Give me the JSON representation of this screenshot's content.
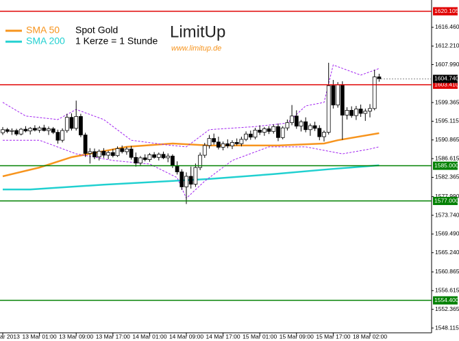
{
  "chart_data": {
    "type": "candlestick",
    "ylim": [
      1547.03,
      1622.67
    ],
    "yticks": [
      {
        "value": 1616.46,
        "label": "1616.460"
      },
      {
        "value": 1612.21,
        "label": "1612.210"
      },
      {
        "value": 1607.99,
        "label": "1607.990"
      },
      {
        "value": 1599.365,
        "label": "1599.365"
      },
      {
        "value": 1595.115,
        "label": "1595.115"
      },
      {
        "value": 1590.865,
        "label": "1590.865"
      },
      {
        "value": 1586.615,
        "label": "1586.615"
      },
      {
        "value": 1582.365,
        "label": "1582.365"
      },
      {
        "value": 1577.99,
        "label": "1577.990"
      },
      {
        "value": 1573.74,
        "label": "1573.740"
      },
      {
        "value": 1569.49,
        "label": "1569.490"
      },
      {
        "value": 1565.24,
        "label": "1565.240"
      },
      {
        "value": 1560.865,
        "label": "1560.865"
      },
      {
        "value": 1556.615,
        "label": "1556.615"
      },
      {
        "value": 1552.365,
        "label": "1552.365"
      },
      {
        "value": 1548.115,
        "label": "1548.115"
      }
    ],
    "levels": [
      {
        "value": 1620.105,
        "label": "1620.105",
        "color": "#e00000"
      },
      {
        "value": 1603.41,
        "label": "1603.410",
        "color": "#e00000"
      },
      {
        "value": 1585.0,
        "label": "1585.000",
        "color": "#008000"
      },
      {
        "value": 1577.0,
        "label": "1577.000",
        "color": "#008000"
      },
      {
        "value": 1554.4,
        "label": "1554.400",
        "color": "#008000"
      }
    ],
    "last_price": {
      "value": 1604.74,
      "label": "1604.740"
    },
    "annotations": [
      "Spot Gold",
      "1 Kerze = 1 Stunde"
    ],
    "logo": {
      "name": "LimitUp",
      "url": "www.limitup.de"
    },
    "up_color": "#ffffff",
    "down_color": "#000000",
    "categories": [
      "ar 2013",
      null,
      null,
      null,
      null,
      null,
      null,
      null,
      "13 Mar 01:00",
      null,
      null,
      null,
      null,
      null,
      null,
      null,
      "13 Mar 09:00",
      null,
      null,
      null,
      null,
      null,
      null,
      null,
      "13 Mar 17:00",
      null,
      null,
      null,
      null,
      null,
      null,
      null,
      "14 Mar 01:00",
      null,
      null,
      null,
      null,
      null,
      null,
      null,
      "14 Mar 09:00",
      null,
      null,
      null,
      null,
      null,
      null,
      null,
      "14 Mar 17:00",
      null,
      null,
      null,
      null,
      null,
      null,
      null,
      "15 Mar 01:00",
      null,
      null,
      null,
      null,
      null,
      null,
      null,
      "15 Mar 09:00",
      null,
      null,
      null,
      null,
      null,
      null,
      null,
      "15 Mar 17:00",
      null,
      null,
      null,
      null,
      null,
      null,
      null,
      "18 Mar 02:00",
      null,
      null
    ],
    "ohlc": [
      [
        1592.5,
        1593.8,
        1592.0,
        1593.2
      ],
      [
        1593.2,
        1593.6,
        1592.4,
        1592.8
      ],
      [
        1592.8,
        1593.5,
        1592.0,
        1593.0
      ],
      [
        1593.0,
        1593.4,
        1591.8,
        1592.2
      ],
      [
        1592.2,
        1593.6,
        1591.9,
        1593.3
      ],
      [
        1593.3,
        1594.0,
        1592.6,
        1592.9
      ],
      [
        1592.9,
        1593.8,
        1592.1,
        1593.5
      ],
      [
        1593.5,
        1594.2,
        1592.8,
        1593.1
      ],
      [
        1593.1,
        1594.0,
        1592.5,
        1593.6
      ],
      [
        1593.6,
        1594.3,
        1592.8,
        1593.0
      ],
      [
        1593.0,
        1593.9,
        1592.0,
        1593.4
      ],
      [
        1593.4,
        1593.8,
        1592.2,
        1592.6
      ],
      [
        1592.6,
        1593.2,
        1590.0,
        1590.8
      ],
      [
        1590.8,
        1593.5,
        1590.3,
        1593.0
      ],
      [
        1593.0,
        1596.8,
        1592.5,
        1596.0
      ],
      [
        1596.0,
        1596.9,
        1593.0,
        1593.5
      ],
      [
        1593.5,
        1599.8,
        1593.0,
        1596.2
      ],
      [
        1596.2,
        1596.8,
        1591.5,
        1592.0
      ],
      [
        1592.0,
        1592.5,
        1587.0,
        1587.8
      ],
      [
        1587.8,
        1589.0,
        1585.5,
        1588.2
      ],
      [
        1588.2,
        1588.9,
        1586.5,
        1587.0
      ],
      [
        1587.0,
        1588.7,
        1586.2,
        1588.3
      ],
      [
        1588.3,
        1589.0,
        1586.8,
        1587.4
      ],
      [
        1587.4,
        1588.4,
        1586.5,
        1588.0
      ],
      [
        1588.0,
        1588.8,
        1586.9,
        1587.3
      ],
      [
        1587.3,
        1589.4,
        1587.0,
        1588.9
      ],
      [
        1588.9,
        1589.6,
        1587.8,
        1588.2
      ],
      [
        1588.2,
        1589.3,
        1587.5,
        1588.8
      ],
      [
        1588.8,
        1589.5,
        1586.4,
        1586.9
      ],
      [
        1586.9,
        1588.0,
        1584.8,
        1585.6
      ],
      [
        1585.6,
        1587.2,
        1585.1,
        1586.8
      ],
      [
        1586.8,
        1587.6,
        1586.0,
        1586.4
      ],
      [
        1586.4,
        1587.9,
        1585.9,
        1587.5
      ],
      [
        1587.5,
        1588.1,
        1586.6,
        1586.9
      ],
      [
        1586.9,
        1588.0,
        1586.2,
        1587.6
      ],
      [
        1587.6,
        1588.2,
        1586.5,
        1586.8
      ],
      [
        1586.8,
        1587.8,
        1585.8,
        1587.2
      ],
      [
        1587.2,
        1587.6,
        1584.5,
        1585.0
      ],
      [
        1585.0,
        1586.0,
        1583.0,
        1583.6
      ],
      [
        1583.6,
        1584.2,
        1579.5,
        1580.2
      ],
      [
        1580.2,
        1583.5,
        1576.3,
        1582.6
      ],
      [
        1582.6,
        1584.8,
        1579.8,
        1580.8
      ],
      [
        1580.8,
        1585.5,
        1580.2,
        1584.6
      ],
      [
        1584.6,
        1588.0,
        1584.0,
        1587.4
      ],
      [
        1587.4,
        1590.2,
        1586.8,
        1589.6
      ],
      [
        1589.6,
        1592.0,
        1588.9,
        1591.2
      ],
      [
        1591.2,
        1592.3,
        1589.8,
        1590.4
      ],
      [
        1590.4,
        1591.6,
        1588.7,
        1589.2
      ],
      [
        1589.2,
        1590.5,
        1588.5,
        1590.0
      ],
      [
        1590.0,
        1591.0,
        1589.0,
        1589.5
      ],
      [
        1589.5,
        1590.8,
        1588.8,
        1590.3
      ],
      [
        1590.3,
        1591.2,
        1589.6,
        1590.0
      ],
      [
        1590.0,
        1591.6,
        1589.4,
        1591.0
      ],
      [
        1591.0,
        1592.8,
        1590.6,
        1592.2
      ],
      [
        1592.2,
        1593.0,
        1590.9,
        1591.5
      ],
      [
        1591.5,
        1593.6,
        1591.0,
        1593.1
      ],
      [
        1593.1,
        1594.2,
        1592.0,
        1592.6
      ],
      [
        1592.6,
        1593.8,
        1591.8,
        1593.4
      ],
      [
        1593.4,
        1594.0,
        1592.2,
        1592.8
      ],
      [
        1592.8,
        1594.4,
        1592.3,
        1593.9
      ],
      [
        1593.9,
        1594.6,
        1590.6,
        1591.4
      ],
      [
        1591.4,
        1594.0,
        1591.0,
        1593.6
      ],
      [
        1593.6,
        1595.5,
        1593.0,
        1594.8
      ],
      [
        1594.8,
        1598.8,
        1594.2,
        1596.3
      ],
      [
        1596.3,
        1597.6,
        1593.4,
        1594.0
      ],
      [
        1594.0,
        1595.4,
        1592.8,
        1595.0
      ],
      [
        1595.0,
        1596.0,
        1592.6,
        1593.2
      ],
      [
        1593.2,
        1594.6,
        1591.8,
        1594.1
      ],
      [
        1594.1,
        1595.0,
        1592.9,
        1593.5
      ],
      [
        1593.5,
        1594.2,
        1590.8,
        1591.6
      ],
      [
        1591.6,
        1593.0,
        1590.5,
        1592.6
      ],
      [
        1592.6,
        1608.4,
        1592.1,
        1603.2
      ],
      [
        1603.2,
        1604.5,
        1598.0,
        1598.8
      ],
      [
        1598.8,
        1604.0,
        1598.2,
        1603.4
      ],
      [
        1603.4,
        1604.2,
        1590.9,
        1596.5
      ],
      [
        1596.5,
        1598.3,
        1595.5,
        1597.6
      ],
      [
        1597.6,
        1598.5,
        1595.9,
        1596.4
      ],
      [
        1596.4,
        1598.6,
        1595.4,
        1597.9
      ],
      [
        1597.9,
        1598.9,
        1596.1,
        1596.9
      ],
      [
        1596.9,
        1598.0,
        1595.2,
        1597.4
      ],
      [
        1597.4,
        1599.0,
        1596.0,
        1598.0
      ],
      [
        1598.0,
        1606.8,
        1597.6,
        1605.2
      ],
      [
        1605.2,
        1605.9,
        1604.1,
        1604.74
      ]
    ],
    "series": [
      {
        "name": "SMA 50",
        "color": "#f7941d",
        "x": [
          0,
          8,
          15,
          27,
          37,
          45,
          60,
          70,
          73,
          82
        ],
        "values": [
          1582.6,
          1584.6,
          1586.95,
          1589.3,
          1590.05,
          1589.6,
          1589.6,
          1590.05,
          1590.8,
          1592.4
        ]
      },
      {
        "name": "SMA 200",
        "color": "#20d0d0",
        "x": [
          0,
          6,
          22,
          45,
          59,
          71,
          82
        ],
        "values": [
          1579.6,
          1579.6,
          1580.7,
          1582.0,
          1583.1,
          1584.2,
          1585.1
        ]
      },
      {
        "color": "#a020f0",
        "dashed": true,
        "x": [
          0,
          5,
          12,
          16,
          22,
          28,
          36,
          40,
          45,
          55,
          62,
          66,
          70,
          72,
          78,
          82
        ],
        "values": [
          1599.4,
          1596.3,
          1595.5,
          1597.8,
          1595.5,
          1590.8,
          1589.7,
          1589.3,
          1593.2,
          1593.9,
          1594.7,
          1598.6,
          1599.4,
          1607.9,
          1605.6,
          1607.1
        ]
      },
      {
        "color": "#a020f0",
        "dashed": true,
        "x": [
          0,
          8,
          16,
          24,
          32,
          38,
          40,
          44,
          50,
          58,
          66,
          70,
          74,
          80,
          82
        ],
        "values": [
          1590.8,
          1590.8,
          1587.7,
          1586.2,
          1585.4,
          1582.3,
          1577.6,
          1581.5,
          1586.2,
          1589.3,
          1589.3,
          1588.5,
          1587.7,
          1588.8,
          1589.3
        ]
      }
    ]
  }
}
